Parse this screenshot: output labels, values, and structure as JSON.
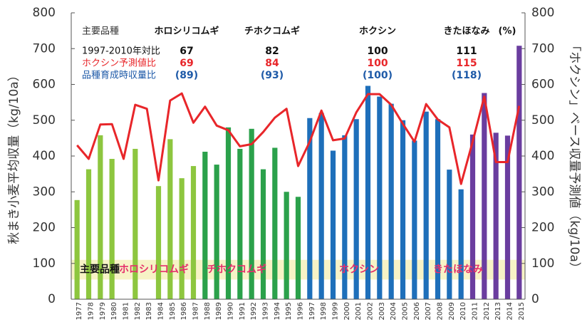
{
  "chart_data": {
    "type": "bar",
    "y_label": "秋まき小麦平均収量（kg/10a）",
    "y2_label": "「ホクシン」ベース収量予測値（kg/10a）",
    "categories": [
      "1977",
      "1978",
      "1979",
      "1980",
      "1981",
      "1982",
      "1983",
      "1984",
      "1985",
      "1986",
      "1987",
      "1988",
      "1989",
      "1990",
      "1991",
      "1992",
      "1993",
      "1994",
      "1995",
      "1996",
      "1997",
      "1998",
      "1999",
      "2000",
      "2001",
      "2002",
      "2003",
      "2004",
      "2005",
      "2006",
      "2007",
      "2008",
      "2009",
      "2010",
      "2011",
      "2012",
      "2013",
      "2014",
      "2015"
    ],
    "series": [
      {
        "type": "bar",
        "values": [
          277,
          363,
          458,
          392,
          null,
          420,
          null,
          316,
          447,
          338,
          372,
          412,
          376,
          480,
          420,
          476,
          363,
          423,
          300,
          286,
          506,
          520,
          415,
          458,
          503,
          596,
          566,
          546,
          500,
          443,
          524,
          503,
          362,
          307,
          460,
          576,
          465,
          457,
          708
        ],
        "colors": [
          "#8dc63f",
          "#8dc63f",
          "#8dc63f",
          "#8dc63f",
          "#8dc63f",
          "#8dc63f",
          "#8dc63f",
          "#8dc63f",
          "#8dc63f",
          "#8dc63f",
          "#8dc63f",
          "#2ba14b",
          "#2ba14b",
          "#2ba14b",
          "#2ba14b",
          "#2ba14b",
          "#2ba14b",
          "#2ba14b",
          "#2ba14b",
          "#2ba14b",
          "#1e6fba",
          "#1e6fba",
          "#1e6fba",
          "#1e6fba",
          "#1e6fba",
          "#1e6fba",
          "#1e6fba",
          "#1e6fba",
          "#1e6fba",
          "#1e6fba",
          "#1e6fba",
          "#1e6fba",
          "#1e6fba",
          "#1e6fba",
          "#6a3d9f",
          "#6a3d9f",
          "#6a3d9f",
          "#6a3d9f",
          "#6a3d9f"
        ]
      },
      {
        "type": "line",
        "axis": "y2",
        "color": "#e8262a",
        "values": [
          430,
          392,
          488,
          489,
          392,
          543,
          532,
          332,
          555,
          575,
          493,
          538,
          485,
          472,
          427,
          433,
          467,
          507,
          532,
          372,
          440,
          527,
          444,
          449,
          522,
          573,
          573,
          543,
          490,
          440,
          545,
          502,
          480,
          322,
          440,
          566,
          383,
          383,
          540
        ]
      }
    ],
    "ylim": [
      0,
      800
    ],
    "yticks": [
      0,
      100,
      200,
      300,
      400,
      500,
      600,
      700,
      800
    ],
    "y2lim": [
      0,
      800
    ],
    "y2ticks": [
      0,
      100,
      200,
      300,
      400,
      500,
      600,
      700,
      800
    ],
    "band": {
      "color": "#f7f3c6",
      "range": [
        55,
        110
      ],
      "labels": [
        "主要品種",
        "ホロシリコムギ",
        "チホクコムギ",
        "ホクシン",
        "きたほなみ"
      ]
    },
    "comparison_table": {
      "header": [
        "主要品種",
        "ホロシリコムギ",
        "チホクコムギ",
        "ホクシン",
        "きたほなみ",
        "(%)"
      ],
      "rows": [
        {
          "label": "1997-2010年対比",
          "color": "#111111",
          "values": [
            67,
            82,
            100,
            111
          ]
        },
        {
          "label": "ホクシン予測値比",
          "color": "#e8262a",
          "values": [
            69,
            84,
            100,
            115
          ]
        },
        {
          "label": "品種育成時収量比",
          "color": "#1e5aa8",
          "values": [
            89,
            93,
            100,
            118
          ],
          "value_labels": [
            "(89)",
            "(93)",
            "(100)",
            "(118)"
          ]
        }
      ]
    }
  }
}
